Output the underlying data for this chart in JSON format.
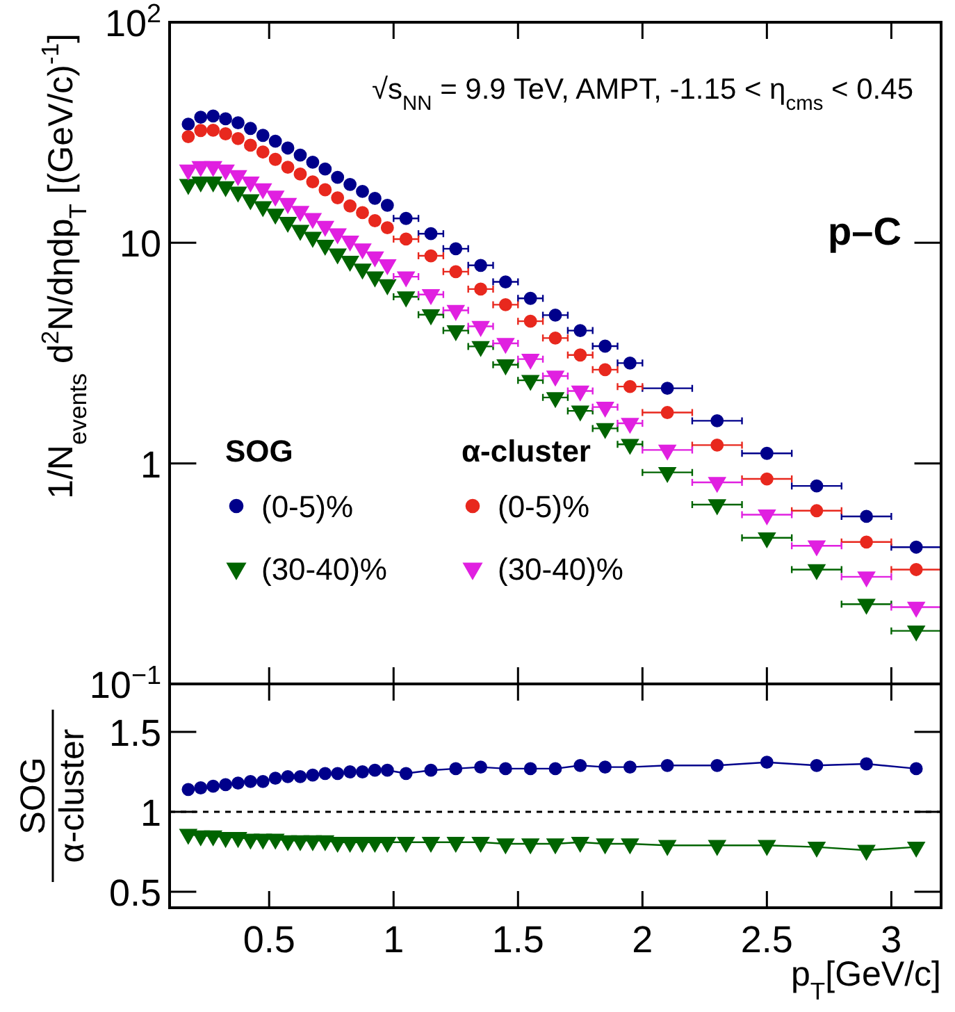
{
  "chart_data": [
    {
      "type": "scatter",
      "log": "y",
      "ylabel": "1/N$_{events}$ d$^{2}$N/dηdp$_{T}$ [(GeV/c)$^{-1}$]",
      "xlim": [
        0.1,
        3.2
      ],
      "ylim": [
        0.1,
        100
      ],
      "yticks": [
        {
          "value": 0.1,
          "label": "10$^{−1}$"
        },
        {
          "value": 1,
          "label": "1"
        },
        {
          "value": 10,
          "label": "10"
        },
        {
          "value": 100,
          "label": "10$^{2}$"
        }
      ],
      "xticks": [
        0.5,
        1,
        1.5,
        2,
        2.5,
        3
      ],
      "tick_labels": "y",
      "legend": "bottom left",
      "legend_title": [
        "SOG",
        "α-cluster"
      ],
      "annotations": [
        "√s$_{NN}$ = 9.9 TeV, AMPT, -1.15 < η$_{cms}$ < 0.45",
        "p–C"
      ],
      "x": [
        0.175,
        0.225,
        0.275,
        0.325,
        0.375,
        0.425,
        0.475,
        0.525,
        0.575,
        0.625,
        0.675,
        0.725,
        0.775,
        0.825,
        0.875,
        0.925,
        0.975,
        1.05,
        1.15,
        1.25,
        1.35,
        1.45,
        1.55,
        1.65,
        1.75,
        1.85,
        1.95,
        2.1,
        2.3,
        2.5,
        2.7,
        2.9,
        3.1
      ],
      "series": [
        {
          "name": "(0-5)%",
          "color": "#00008b",
          "marker": "circle",
          "xerrors": [
            null,
            null,
            null,
            null,
            null,
            null,
            null,
            null,
            null,
            null,
            null,
            null,
            null,
            null,
            null,
            null,
            null,
            0.05,
            0.05,
            0.05,
            0.05,
            0.05,
            0.05,
            0.05,
            0.05,
            0.05,
            0.05,
            0.1,
            0.1,
            0.1,
            0.1,
            0.1,
            0.1
          ],
          "values": [
            34.5,
            37.1,
            37.6,
            36.5,
            35.0,
            33.0,
            30.7,
            28.9,
            26.9,
            25.0,
            23.2,
            21.6,
            19.8,
            18.4,
            17.1,
            15.9,
            14.8,
            12.9,
            11.0,
            9.4,
            7.9,
            6.65,
            5.6,
            4.7,
            4.0,
            3.4,
            2.85,
            2.19,
            1.56,
            1.11,
            0.79,
            0.575,
            0.417
          ]
        },
        {
          "name": "(30-40)%",
          "color": "#006400",
          "marker": "triangle",
          "xerrors": [
            null,
            null,
            null,
            null,
            null,
            null,
            null,
            null,
            null,
            null,
            null,
            null,
            null,
            null,
            null,
            null,
            null,
            0.05,
            0.05,
            0.05,
            0.05,
            0.05,
            0.05,
            0.05,
            0.05,
            0.05,
            0.05,
            0.1,
            0.1,
            0.1,
            0.1,
            0.1,
            0.1
          ],
          "values": [
            18.4,
            18.9,
            18.9,
            18.0,
            17.0,
            15.7,
            14.6,
            13.5,
            12.4,
            11.4,
            10.6,
            9.76,
            8.91,
            8.26,
            7.61,
            7.01,
            6.46,
            5.69,
            4.72,
            4.0,
            3.39,
            2.8,
            2.38,
            1.99,
            1.73,
            1.44,
            1.22,
            0.91,
            0.65,
            0.46,
            0.33,
            0.23,
            0.174
          ]
        },
        {
          "name": "(0-5)%",
          "color": "#e8281e",
          "marker": "circle",
          "xerrors": [
            null,
            null,
            null,
            null,
            null,
            null,
            null,
            null,
            null,
            null,
            null,
            null,
            null,
            null,
            null,
            null,
            null,
            0.05,
            0.05,
            0.05,
            0.05,
            0.05,
            0.05,
            0.05,
            0.05,
            0.05,
            0.05,
            0.1,
            0.1,
            0.1,
            0.1,
            0.1,
            0.1
          ],
          "values": [
            30.3,
            32.3,
            32.4,
            31.2,
            29.7,
            27.7,
            25.8,
            23.9,
            22.0,
            20.5,
            18.9,
            17.4,
            16.0,
            14.7,
            13.7,
            12.6,
            11.7,
            10.4,
            8.73,
            7.4,
            6.17,
            5.24,
            4.41,
            3.7,
            3.1,
            2.66,
            2.23,
            1.7,
            1.21,
            0.85,
            0.61,
            0.44,
            0.33
          ]
        },
        {
          "name": "(30-40)%",
          "color": "#e020e0",
          "marker": "triangle",
          "xerrors": [
            null,
            null,
            null,
            null,
            null,
            null,
            null,
            null,
            null,
            null,
            null,
            null,
            null,
            null,
            null,
            null,
            null,
            0.05,
            0.05,
            0.05,
            0.05,
            0.05,
            0.05,
            0.05,
            0.05,
            0.05,
            0.05,
            0.1,
            0.1,
            0.1,
            0.1,
            0.1,
            0.1
          ],
          "values": [
            21.4,
            22.2,
            22.2,
            21.4,
            20.2,
            18.9,
            17.6,
            16.3,
            15.1,
            13.9,
            12.9,
            11.9,
            11.0,
            10.2,
            9.4,
            8.65,
            7.97,
            7.02,
            5.83,
            4.94,
            4.18,
            3.5,
            2.97,
            2.49,
            2.13,
            1.8,
            1.52,
            1.15,
            0.82,
            0.585,
            0.423,
            0.306,
            0.223
          ]
        }
      ]
    },
    {
      "type": "line",
      "ylabel": [
        "SOG",
        "α-cluster"
      ],
      "xlabel": "p$_{T}$[GeV/c]",
      "xlim": [
        0.1,
        3.2
      ],
      "ylim": [
        0.4,
        1.8
      ],
      "xticks": [
        0.5,
        1,
        1.5,
        2,
        2.5,
        3
      ],
      "yticks": [
        0.5,
        1,
        1.5
      ],
      "legend": false,
      "ref_lines": [
        {
          "axis": "y",
          "value": 1,
          "line_style": "dashed",
          "color": "#000000"
        }
      ],
      "x": [
        0.175,
        0.225,
        0.275,
        0.325,
        0.375,
        0.425,
        0.475,
        0.525,
        0.575,
        0.625,
        0.675,
        0.725,
        0.775,
        0.825,
        0.875,
        0.925,
        0.975,
        1.05,
        1.15,
        1.25,
        1.35,
        1.45,
        1.55,
        1.65,
        1.75,
        1.85,
        1.95,
        2.1,
        2.3,
        2.5,
        2.7,
        2.9,
        3.1
      ],
      "series": [
        {
          "color": "#00008b",
          "marker": "circle",
          "values": [
            1.14,
            1.15,
            1.16,
            1.17,
            1.18,
            1.19,
            1.19,
            1.21,
            1.22,
            1.22,
            1.23,
            1.24,
            1.24,
            1.25,
            1.25,
            1.26,
            1.26,
            1.24,
            1.26,
            1.27,
            1.28,
            1.27,
            1.27,
            1.27,
            1.29,
            1.28,
            1.28,
            1.29,
            1.29,
            1.31,
            1.29,
            1.3,
            1.27
          ]
        },
        {
          "color": "#006400",
          "marker": "triangle",
          "values": [
            0.86,
            0.85,
            0.85,
            0.84,
            0.84,
            0.83,
            0.83,
            0.83,
            0.82,
            0.82,
            0.82,
            0.82,
            0.81,
            0.81,
            0.81,
            0.81,
            0.81,
            0.81,
            0.81,
            0.81,
            0.81,
            0.8,
            0.8,
            0.8,
            0.81,
            0.8,
            0.8,
            0.79,
            0.79,
            0.79,
            0.78,
            0.76,
            0.78
          ]
        }
      ]
    }
  ]
}
